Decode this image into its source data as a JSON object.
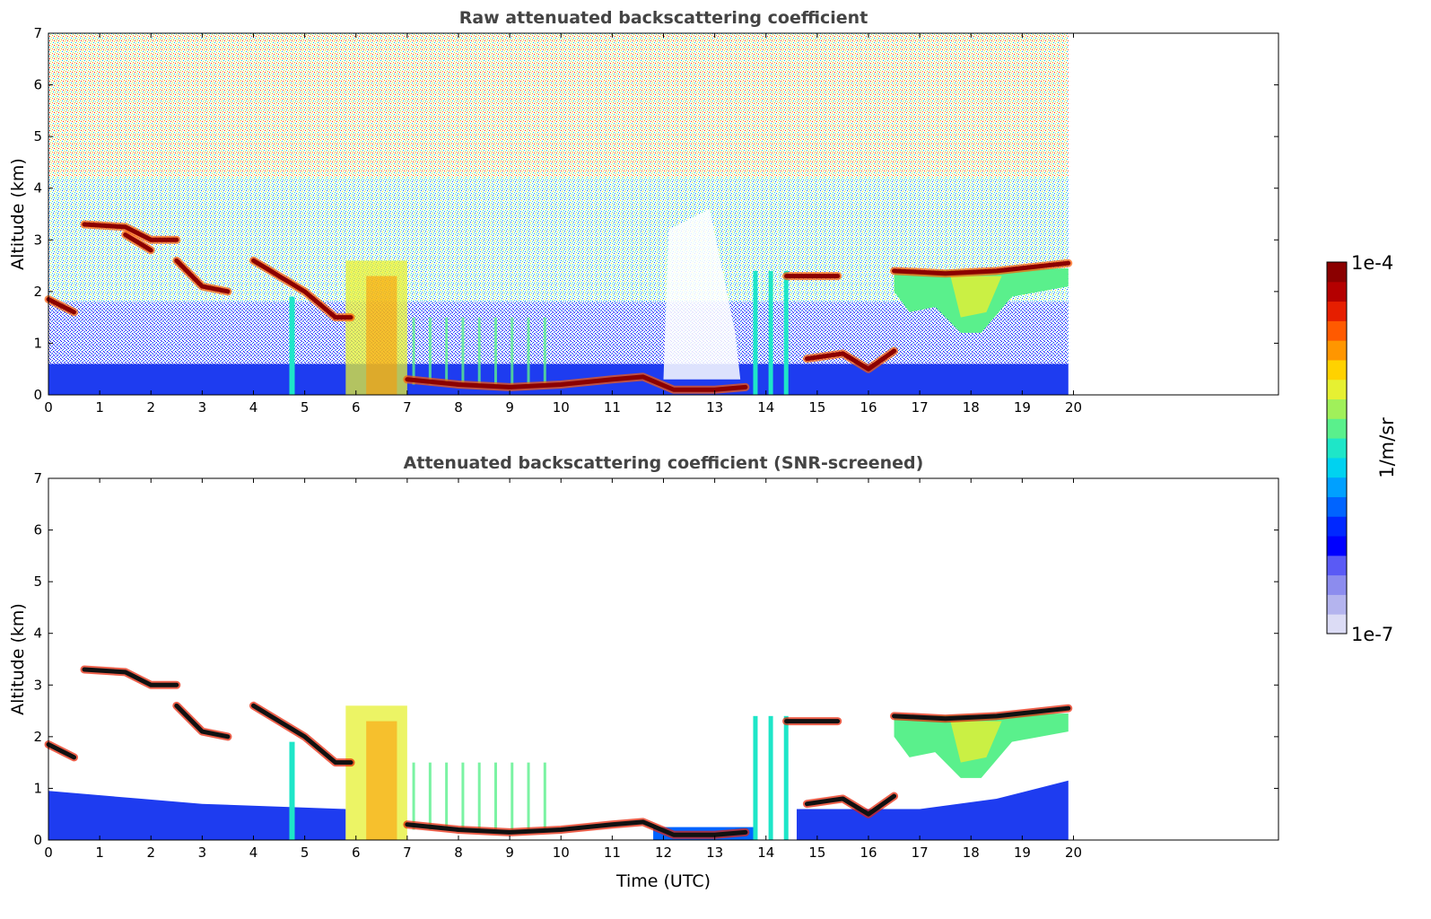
{
  "figure": {
    "colorbar": {
      "min_label": "1e-7",
      "max_label": "1e-4",
      "unit_label": "1/m/sr",
      "colors": [
        "#dcdcf5",
        "#b4b4ee",
        "#8c8cee",
        "#5a5af5",
        "#0000ff",
        "#0028ff",
        "#0064ff",
        "#00a0ff",
        "#00d2f0",
        "#1ee6c8",
        "#5af08c",
        "#a0f05a",
        "#e6f032",
        "#ffd200",
        "#ff9600",
        "#ff5a00",
        "#e61e00",
        "#b40000",
        "#8b0000"
      ]
    }
  },
  "chart_data": [
    {
      "type": "heatmap",
      "title": "Raw attenuated backscattering coefficient",
      "xlabel": "",
      "ylabel": "Altitude (km)",
      "x_ticks": [
        "0",
        "1",
        "2",
        "3",
        "4",
        "5",
        "6",
        "7",
        "8",
        "9",
        "10",
        "11",
        "12",
        "13",
        "14",
        "15",
        "16",
        "17",
        "18",
        "19",
        "20"
      ],
      "y_ticks": [
        "0",
        "1",
        "2",
        "3",
        "4",
        "5",
        "6",
        "7"
      ],
      "xlim": [
        0,
        24
      ],
      "ylim": [
        0,
        7
      ],
      "data_x_range": [
        0,
        19.9
      ],
      "colorscale": "jet (log)",
      "features": [
        {
          "name": "cloud_layer",
          "points": [
            [
              0,
              1.85
            ],
            [
              0.5,
              1.6
            ]
          ]
        },
        {
          "name": "cloud_layer",
          "points": [
            [
              0.7,
              3.3
            ],
            [
              1.5,
              3.25
            ],
            [
              2.0,
              3.0
            ],
            [
              2.5,
              3.0
            ]
          ]
        },
        {
          "name": "cloud_layer",
          "points": [
            [
              1.5,
              3.1
            ],
            [
              2.0,
              2.8
            ]
          ]
        },
        {
          "name": "cloud_layer",
          "points": [
            [
              2.5,
              2.6
            ],
            [
              3.0,
              2.1
            ],
            [
              3.5,
              2.0
            ]
          ]
        },
        {
          "name": "cloud_layer",
          "points": [
            [
              4.0,
              2.6
            ],
            [
              4.5,
              2.3
            ],
            [
              5.0,
              2.0
            ],
            [
              5.6,
              1.5
            ],
            [
              5.9,
              1.5
            ]
          ]
        },
        {
          "name": "cloud_layer",
          "points": [
            [
              7.0,
              0.3
            ],
            [
              8.0,
              0.2
            ],
            [
              9.0,
              0.15
            ],
            [
              10.0,
              0.2
            ],
            [
              11.0,
              0.3
            ],
            [
              11.6,
              0.35
            ],
            [
              12.2,
              0.1
            ],
            [
              13.0,
              0.1
            ],
            [
              13.6,
              0.15
            ]
          ]
        },
        {
          "name": "cloud_layer",
          "points": [
            [
              14.4,
              2.3
            ],
            [
              15.4,
              2.3
            ]
          ]
        },
        {
          "name": "cloud_layer",
          "points": [
            [
              14.8,
              0.7
            ],
            [
              15.5,
              0.8
            ],
            [
              16.0,
              0.5
            ],
            [
              16.5,
              0.85
            ]
          ]
        },
        {
          "name": "cloud_layer",
          "points": [
            [
              16.5,
              2.4
            ],
            [
              17.5,
              2.35
            ],
            [
              18.5,
              2.4
            ],
            [
              19.9,
              2.55
            ]
          ]
        }
      ]
    },
    {
      "type": "heatmap",
      "title": "Attenuated backscattering coefficient (SNR-screened)",
      "xlabel": "Time (UTC)",
      "ylabel": "Altitude (km)",
      "x_ticks": [
        "0",
        "1",
        "2",
        "3",
        "4",
        "5",
        "6",
        "7",
        "8",
        "9",
        "10",
        "11",
        "12",
        "13",
        "14",
        "15",
        "16",
        "17",
        "18",
        "19",
        "20"
      ],
      "y_ticks": [
        "0",
        "1",
        "2",
        "3",
        "4",
        "5",
        "6",
        "7"
      ],
      "xlim": [
        0,
        24
      ],
      "ylim": [
        0,
        7
      ],
      "data_x_range": [
        0,
        19.9
      ],
      "colorscale": "jet (log)",
      "features": [
        {
          "name": "cloud_layer",
          "points": [
            [
              0,
              1.85
            ],
            [
              0.5,
              1.6
            ]
          ]
        },
        {
          "name": "cloud_layer",
          "points": [
            [
              0.7,
              3.3
            ],
            [
              1.5,
              3.25
            ],
            [
              2.0,
              3.0
            ],
            [
              2.5,
              3.0
            ]
          ]
        },
        {
          "name": "cloud_layer",
          "points": [
            [
              2.5,
              2.6
            ],
            [
              3.0,
              2.1
            ],
            [
              3.5,
              2.0
            ]
          ]
        },
        {
          "name": "cloud_layer",
          "points": [
            [
              4.0,
              2.6
            ],
            [
              4.5,
              2.3
            ],
            [
              5.0,
              2.0
            ],
            [
              5.6,
              1.5
            ],
            [
              5.9,
              1.5
            ]
          ]
        },
        {
          "name": "cloud_layer",
          "points": [
            [
              7.0,
              0.3
            ],
            [
              8.0,
              0.2
            ],
            [
              9.0,
              0.15
            ],
            [
              10.0,
              0.2
            ],
            [
              11.0,
              0.3
            ],
            [
              11.6,
              0.35
            ],
            [
              12.2,
              0.1
            ],
            [
              13.0,
              0.1
            ],
            [
              13.6,
              0.15
            ]
          ]
        },
        {
          "name": "cloud_layer",
          "points": [
            [
              14.4,
              2.3
            ],
            [
              15.4,
              2.3
            ]
          ]
        },
        {
          "name": "cloud_layer",
          "points": [
            [
              14.8,
              0.7
            ],
            [
              15.5,
              0.8
            ],
            [
              16.0,
              0.5
            ],
            [
              16.5,
              0.85
            ]
          ]
        },
        {
          "name": "cloud_layer",
          "points": [
            [
              16.5,
              2.4
            ],
            [
              17.5,
              2.35
            ],
            [
              18.5,
              2.4
            ],
            [
              19.9,
              2.55
            ]
          ]
        }
      ]
    }
  ]
}
